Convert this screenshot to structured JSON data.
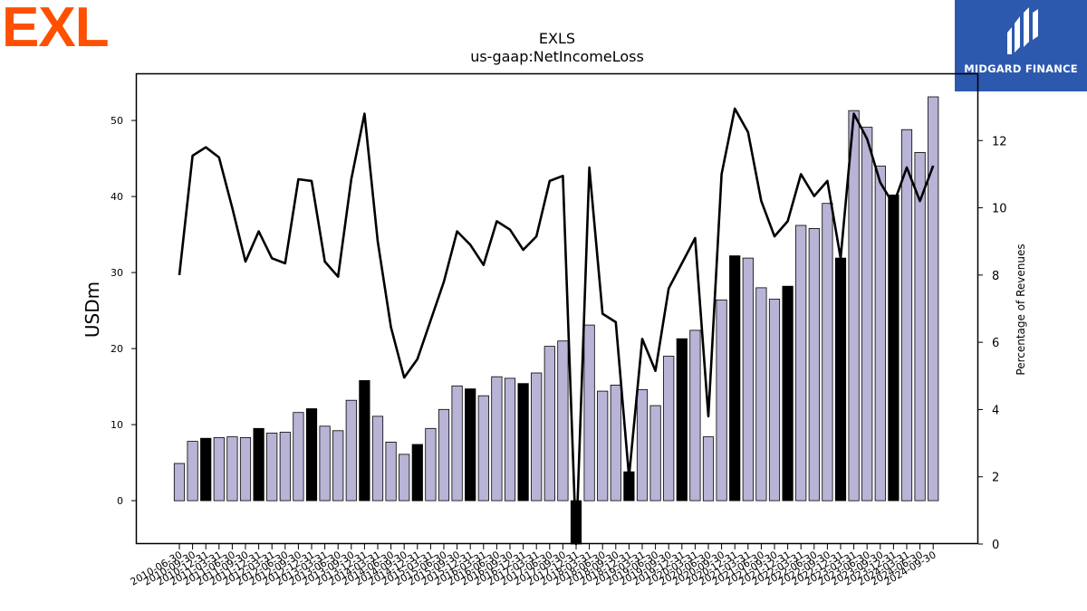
{
  "brand": {
    "name": "EXL",
    "color": "#fe5000"
  },
  "partner": {
    "name": "MIDGARD FINANCE",
    "color": "#2c59ae"
  },
  "chart_data": {
    "type": "bar",
    "title": "EXLS",
    "subtitle": "us-gaap:NetIncomeLoss",
    "ylabel": "USDm",
    "y2label": "Percentage of Revenues",
    "ylim": [
      -5.7,
      56.2
    ],
    "y2lim": [
      0,
      14.0
    ],
    "yticks": [
      0,
      10,
      20,
      30,
      40,
      50
    ],
    "y2ticks": [
      0,
      2,
      4,
      6,
      8,
      10,
      12
    ],
    "grid": false,
    "bar_color": "#b8b4d6",
    "highlight_color": "#000000",
    "line_color": "#000000",
    "categories": [
      "2010-06-30",
      "2010-09-30",
      "2010-12-31",
      "2011-03-31",
      "2011-06-30",
      "2011-09-30",
      "2011-12-31",
      "2012-03-31",
      "2012-06-30",
      "2012-09-30",
      "2012-12-31",
      "2013-03-31",
      "2013-06-30",
      "2013-09-30",
      "2013-12-31",
      "2014-03-31",
      "2014-06-30",
      "2014-09-30",
      "2014-12-31",
      "2015-03-31",
      "2015-06-30",
      "2015-09-30",
      "2015-12-31",
      "2016-03-31",
      "2016-06-30",
      "2016-09-30",
      "2016-12-31",
      "2017-03-31",
      "2017-06-30",
      "2017-09-30",
      "2017-12-31",
      "2018-03-31",
      "2018-06-30",
      "2018-09-30",
      "2018-12-31",
      "2019-03-31",
      "2019-06-30",
      "2019-09-30",
      "2019-12-31",
      "2020-03-31",
      "2020-06-30",
      "2020-09-30",
      "2020-12-31",
      "2021-03-31",
      "2021-06-30",
      "2021-09-30",
      "2021-12-31",
      "2022-03-31",
      "2022-06-30",
      "2022-09-30",
      "2022-12-31",
      "2023-03-31",
      "2023-06-30",
      "2023-09-30",
      "2023-12-31",
      "2024-03-31",
      "2024-06-30",
      "2024-09-30"
    ],
    "tick_labels": [
      "2010-06-30",
      "2010-09-30",
      "2010-12-31",
      "2011-03-31",
      "2011-06-30",
      "2011-09-30",
      "2011-12-31",
      "2012-03-31",
      "2012-06-30",
      "2012-09-30",
      "2012-12-31",
      "2013-03-31",
      "2013-06-30",
      "2013-09-30",
      "2013-12-31",
      "2014-03-31",
      "2014-06-30",
      "2014-09-30",
      "2014-12-31",
      "2015-03-31",
      "2015-06-30",
      "2015-09-30",
      "2015-12-31",
      "2016-03-31",
      "2016-06-30",
      "2016-09-30",
      "2016-12-31",
      "2017-03-31",
      "2017-06-30",
      "2017-09-30",
      "2017-12-31",
      "2018-03-31",
      "2018-06-30",
      "2018-09-30",
      "2018-12-31",
      "2019-03-31",
      "2019-06-30",
      "2019-09-30",
      "2019-12-31",
      "2020-03-31",
      "2020-06-30",
      "2020-09-30",
      "2020-12-31",
      "2021-03-31",
      "2021-06-30",
      "2021-09-30",
      "2021-12-31",
      "2022-03-31",
      "2022-06-30",
      "2022-09-30",
      "2022-12-31",
      "2023-03-31",
      "2023-06-30",
      "2023-09-30",
      "2023-12-31",
      "2024-03-31",
      "2024-06-30",
      "2024-09-30"
    ],
    "series": [
      {
        "axis": "left",
        "type": "bar",
        "values": [
          4.9,
          7.8,
          8.2,
          8.3,
          8.4,
          8.3,
          9.5,
          8.9,
          9.0,
          11.6,
          12.1,
          9.8,
          9.2,
          13.2,
          15.8,
          11.1,
          7.7,
          6.1,
          7.4,
          9.5,
          12.0,
          15.1,
          14.7,
          13.8,
          16.3,
          16.1,
          15.4,
          16.8,
          20.3,
          21.0,
          -5.8,
          23.1,
          14.4,
          15.2,
          3.8,
          14.6,
          12.5,
          19.0,
          21.3,
          22.4,
          8.4,
          26.4,
          32.2,
          31.9,
          28.0,
          26.5,
          28.2,
          36.2,
          35.8,
          39.1,
          31.9,
          51.3,
          49.1,
          44.0,
          40.2,
          48.8,
          45.8,
          53.1
        ],
        "highlight": [
          false,
          false,
          true,
          false,
          false,
          false,
          true,
          false,
          false,
          false,
          true,
          false,
          false,
          false,
          true,
          false,
          false,
          false,
          true,
          false,
          false,
          false,
          true,
          false,
          false,
          false,
          true,
          false,
          false,
          false,
          true,
          false,
          false,
          false,
          true,
          false,
          false,
          false,
          true,
          false,
          false,
          false,
          true,
          false,
          false,
          false,
          true,
          false,
          false,
          false,
          true,
          false,
          false,
          false,
          true,
          false,
          false,
          false
        ]
      },
      {
        "axis": "right",
        "type": "line",
        "values": [
          8.0,
          11.55,
          11.8,
          11.5,
          10.0,
          8.4,
          9.3,
          8.5,
          8.35,
          10.85,
          10.8,
          8.4,
          7.95,
          10.85,
          12.8,
          9.0,
          6.45,
          4.95,
          5.5,
          6.65,
          7.8,
          9.3,
          8.9,
          8.3,
          9.6,
          9.35,
          8.75,
          9.15,
          10.8,
          10.95,
          0.0,
          11.2,
          6.85,
          6.6,
          2.0,
          6.1,
          5.15,
          7.6,
          8.35,
          9.1,
          3.8,
          11.0,
          12.95,
          12.25,
          10.2,
          9.15,
          9.6,
          11.0,
          10.35,
          10.8,
          8.5,
          12.8,
          12.05,
          10.75,
          10.1,
          11.2,
          10.2,
          11.25
        ]
      }
    ]
  }
}
